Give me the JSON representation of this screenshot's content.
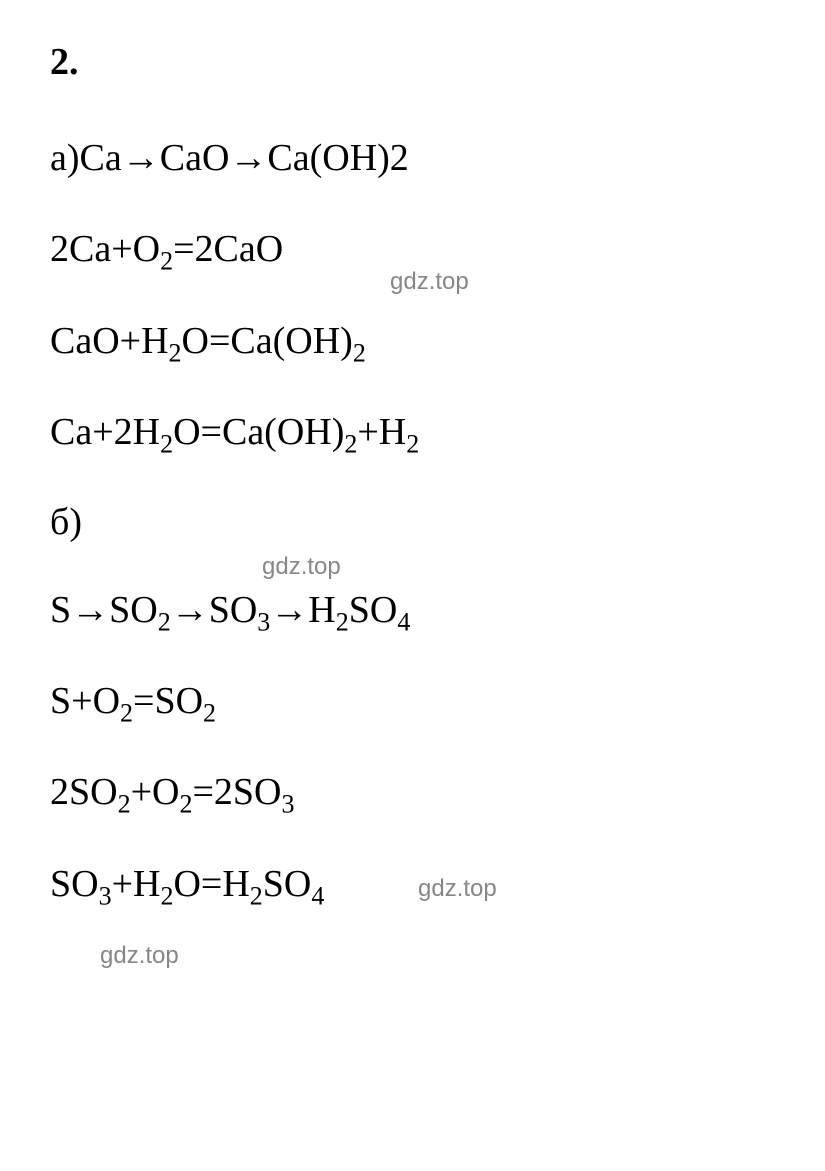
{
  "problem": {
    "number": "2."
  },
  "sections": {
    "a": {
      "label": "а)",
      "chain": "Ca→CaO→Ca(OH)2",
      "equations": [
        {
          "prefix": "2Ca+O",
          "sub1": "2",
          "mid": "=2CaO",
          "sub2": "",
          "suffix": ""
        },
        {
          "text": "CaO+H",
          "sub1": "2",
          "mid1": "O=Ca(OH)",
          "sub2": "2",
          "suffix": ""
        },
        {
          "text": "Ca+2H",
          "sub1": "2",
          "mid1": "O=Ca(OH)",
          "sub2": "2",
          "mid2": "+H",
          "sub3": "2",
          "suffix": ""
        }
      ]
    },
    "b": {
      "label": "б)",
      "chain_parts": {
        "p1": "S→SO",
        "s1": "2",
        "p2": "→SO",
        "s2": "3",
        "p3": "→H",
        "s3": "2",
        "p4": "SO",
        "s4": "4"
      },
      "equations": [
        {
          "p1": "S+O",
          "s1": "2",
          "p2": "=SO",
          "s2": "2"
        },
        {
          "p1": "2SO",
          "s1": "2",
          "p2": "+O",
          "s2": "2",
          "p3": "=2SO",
          "s3": "3"
        },
        {
          "p1": "SO",
          "s1": "3",
          "p2": "+H",
          "s2": "2",
          "p3": "O=H",
          "s3": "2",
          "p4": "SO",
          "s4": "4"
        }
      ]
    }
  },
  "watermarks": {
    "text": "gdz.top"
  },
  "styling": {
    "background_color": "#ffffff",
    "text_color": "#000000",
    "watermark_color": "#878787",
    "main_fontsize": 38,
    "sub_fontsize": 26,
    "watermark_fontsize": 24,
    "font_family": "Times New Roman"
  }
}
